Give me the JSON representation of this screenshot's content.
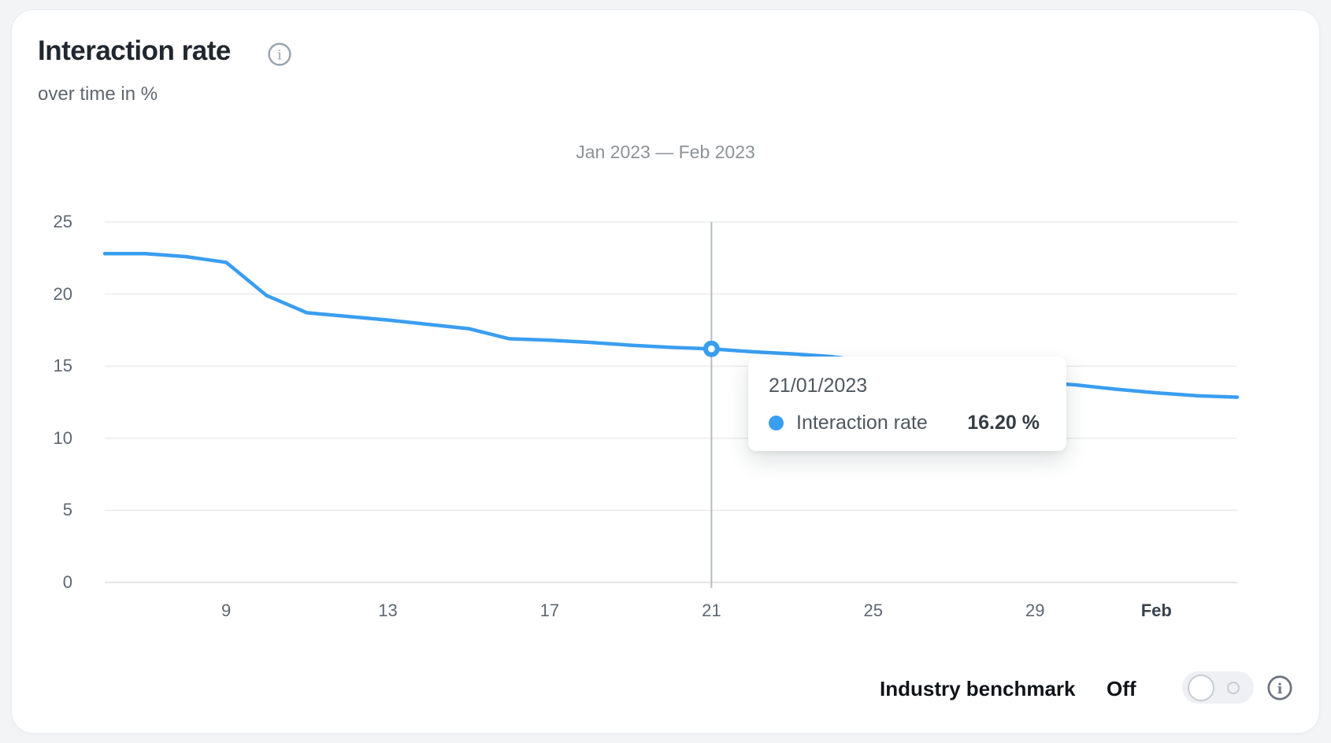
{
  "header": {
    "title": "Interaction rate",
    "subtitle": "over time in %"
  },
  "icons": {
    "title_info": "info-circle",
    "benchmark_info": "info-circle"
  },
  "chart_data": {
    "type": "line",
    "title": "Jan 2023 — Feb 2023",
    "xlabel": "",
    "ylabel": "over time in %",
    "ylim": [
      0,
      25
    ],
    "yticks": [
      0,
      5,
      10,
      15,
      20,
      25
    ],
    "grid": "horizontal",
    "x": [
      "06/01/2023",
      "07/01/2023",
      "08/01/2023",
      "09/01/2023",
      "10/01/2023",
      "11/01/2023",
      "12/01/2023",
      "13/01/2023",
      "14/01/2023",
      "15/01/2023",
      "16/01/2023",
      "17/01/2023",
      "18/01/2023",
      "19/01/2023",
      "20/01/2023",
      "21/01/2023",
      "22/01/2023",
      "23/01/2023",
      "24/01/2023",
      "25/01/2023",
      "26/01/2023",
      "27/01/2023",
      "28/01/2023",
      "29/01/2023",
      "30/01/2023",
      "31/01/2023",
      "01/02/2023",
      "02/02/2023",
      "03/02/2023"
    ],
    "xticks": [
      {
        "label": "9",
        "index": 3,
        "bold": false
      },
      {
        "label": "13",
        "index": 7,
        "bold": false
      },
      {
        "label": "17",
        "index": 11,
        "bold": false
      },
      {
        "label": "21",
        "index": 15,
        "bold": false
      },
      {
        "label": "25",
        "index": 19,
        "bold": false
      },
      {
        "label": "29",
        "index": 23,
        "bold": false
      },
      {
        "label": "Feb",
        "index": 26,
        "bold": true
      }
    ],
    "series": [
      {
        "name": "Interaction rate",
        "color": "#3A9EF0",
        "values": [
          22.8,
          22.8,
          22.6,
          22.2,
          19.9,
          18.7,
          18.45,
          18.2,
          17.9,
          17.6,
          16.9,
          16.8,
          16.65,
          16.45,
          16.3,
          16.2,
          16.0,
          15.85,
          15.65,
          15.3,
          14.9,
          14.5,
          14.15,
          13.9,
          13.7,
          13.4,
          13.15,
          12.95,
          12.85
        ]
      }
    ],
    "highlight": {
      "index": 15,
      "date": "21/01/2023",
      "value": 16.2,
      "value_label": "16.20 %"
    },
    "legend_position": "none"
  },
  "tooltip": {
    "date": "21/01/2023",
    "series_label": "Interaction rate",
    "value_label": "16.20 %"
  },
  "benchmark": {
    "label": "Industry benchmark",
    "state": "Off",
    "toggle_position": "off"
  }
}
